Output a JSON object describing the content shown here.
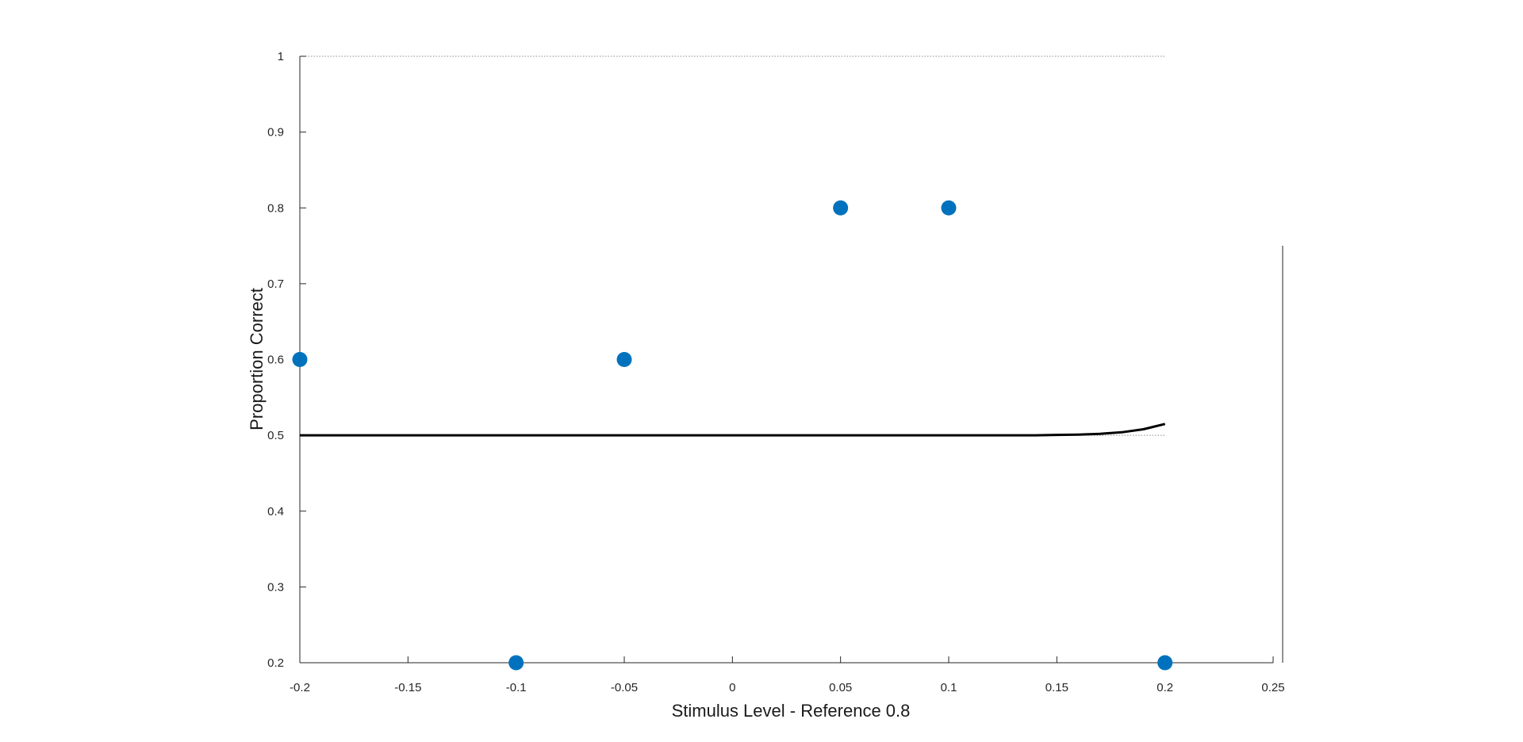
{
  "chart_data": {
    "type": "scatter",
    "title": "",
    "xlabel": "Stimulus Level - Reference 0.8",
    "ylabel": "Proportion Correct",
    "xlim": [
      -0.2,
      0.25
    ],
    "ylim": [
      0.2,
      1
    ],
    "xticks": [
      -0.2,
      -0.15,
      -0.1,
      -0.05,
      0,
      0.05,
      0.1,
      0.15,
      0.2,
      0.25
    ],
    "xtick_labels": [
      "-0.2",
      "-0.15",
      "-0.1",
      "-0.05",
      "0",
      "0.05",
      "0.1",
      "0.15",
      "0.2",
      "0.25"
    ],
    "yticks": [
      0.2,
      0.3,
      0.4,
      0.5,
      0.6,
      0.7,
      0.8,
      0.9,
      1
    ],
    "ytick_labels": [
      "0.2",
      "0.3",
      "0.4",
      "0.5",
      "0.6",
      "0.7",
      "0.8",
      "0.9",
      "1"
    ],
    "reference_lines": [
      {
        "y": 1,
        "style": "dotted",
        "x_range": [
          -0.2,
          0.2
        ]
      },
      {
        "y": 0.5,
        "style": "dotted",
        "x_range": [
          -0.2,
          0.2
        ]
      }
    ],
    "points": {
      "x": [
        -0.2,
        -0.1,
        -0.05,
        0.05,
        0.1,
        0.2
      ],
      "y": [
        0.6,
        0.2,
        0.6,
        0.8,
        0.8,
        0.2
      ],
      "color": "#0072BD"
    },
    "fit_curve": {
      "x": [
        -0.2,
        -0.1,
        0,
        0.1,
        0.14,
        0.15,
        0.16,
        0.17,
        0.18,
        0.19,
        0.2
      ],
      "y": [
        0.5,
        0.5,
        0.5,
        0.5,
        0.5,
        0.5005,
        0.501,
        0.502,
        0.504,
        0.508,
        0.515
      ],
      "color": "#000000"
    },
    "grid": false,
    "legend": "none"
  }
}
